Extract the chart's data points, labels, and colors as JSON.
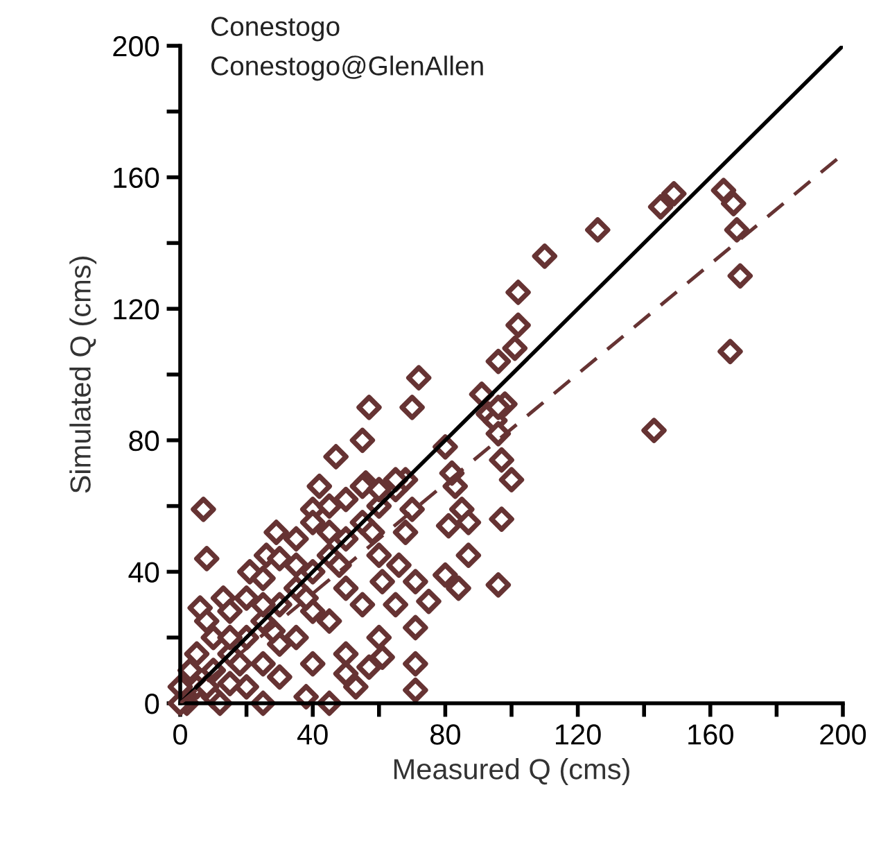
{
  "chart_data": {
    "type": "scatter",
    "xlabel": "Measured Q (cms)",
    "ylabel": "Simulated Q (cms)",
    "annotations": [
      "Conestogo",
      "Conestogo@GlenAllen"
    ],
    "xlim": [
      0,
      200
    ],
    "ylim": [
      0,
      200
    ],
    "xticks": [
      0,
      {
        "value": 20,
        "label": null
      },
      40,
      {
        "value": 60,
        "label": null
      },
      80,
      {
        "value": 100,
        "label": null
      },
      120,
      {
        "value": 140,
        "label": null
      },
      160,
      {
        "value": 180,
        "label": null
      },
      200
    ],
    "yticks": [
      0,
      {
        "value": 20,
        "label": null
      },
      40,
      {
        "value": 60,
        "label": null
      },
      80,
      {
        "value": 100,
        "label": null
      },
      120,
      {
        "value": 140,
        "label": null
      },
      160,
      {
        "value": 180,
        "label": null
      },
      200
    ],
    "grid": false,
    "series": [
      {
        "color": "#663333",
        "marker": "diamond",
        "x": [
          126,
          145,
          149,
          164,
          167,
          168,
          169,
          166,
          110,
          102,
          102,
          101,
          96,
          72,
          57,
          70,
          91,
          93,
          95,
          98,
          143,
          97,
          100,
          83,
          85,
          87,
          81,
          97,
          80,
          84,
          96,
          87,
          80,
          82,
          96,
          96,
          7,
          8,
          55,
          47,
          56,
          42,
          40,
          29,
          26,
          21,
          13,
          6,
          68,
          70,
          68,
          66,
          71,
          75,
          71,
          71,
          71,
          61,
          57,
          53,
          50,
          61,
          5,
          10,
          15,
          20,
          25,
          30,
          35,
          40,
          45,
          50,
          55,
          60,
          65,
          10,
          20,
          30,
          40,
          50,
          60,
          65,
          55,
          45,
          35,
          25,
          15,
          60,
          50,
          40,
          30,
          5,
          10,
          15,
          20,
          25,
          30,
          35,
          40,
          45,
          50,
          55,
          60,
          65,
          15,
          25,
          35,
          45,
          3,
          8,
          0,
          2,
          0,
          12,
          25,
          38,
          45,
          8,
          18,
          28,
          38,
          48,
          58
        ],
        "values": [
          144,
          151,
          155,
          156,
          152,
          144,
          130,
          107,
          136,
          125,
          115,
          108,
          104,
          99,
          90,
          90,
          94,
          88,
          86,
          91,
          83,
          74,
          68,
          66,
          59,
          55,
          54,
          56,
          39,
          35,
          36,
          45,
          78,
          70,
          82,
          90,
          59,
          44,
          80,
          75,
          67,
          66,
          59,
          52,
          45,
          40,
          32,
          29,
          68,
          59,
          52,
          42,
          37,
          31,
          23,
          12,
          4,
          14,
          11,
          5,
          9,
          37,
          5,
          10,
          15,
          20,
          25,
          30,
          35,
          40,
          45,
          50,
          55,
          60,
          65,
          2,
          5,
          8,
          12,
          15,
          20,
          30,
          30,
          25,
          20,
          12,
          6,
          45,
          35,
          28,
          18,
          15,
          20,
          28,
          32,
          38,
          44,
          50,
          55,
          60,
          62,
          66,
          65,
          68,
          20,
          30,
          42,
          52,
          10,
          25,
          5,
          0,
          0,
          0,
          0,
          2,
          0,
          5,
          12,
          22,
          32,
          42,
          52
        ]
      },
      {
        "type": "line",
        "color": "#000000",
        "line_style": "solid",
        "x": [
          0,
          200
        ],
        "values": [
          0,
          200
        ]
      },
      {
        "type": "line",
        "color": "#663333",
        "line_style": "dashed",
        "x": [
          0,
          200
        ],
        "values": [
          0,
          167
        ]
      }
    ]
  }
}
